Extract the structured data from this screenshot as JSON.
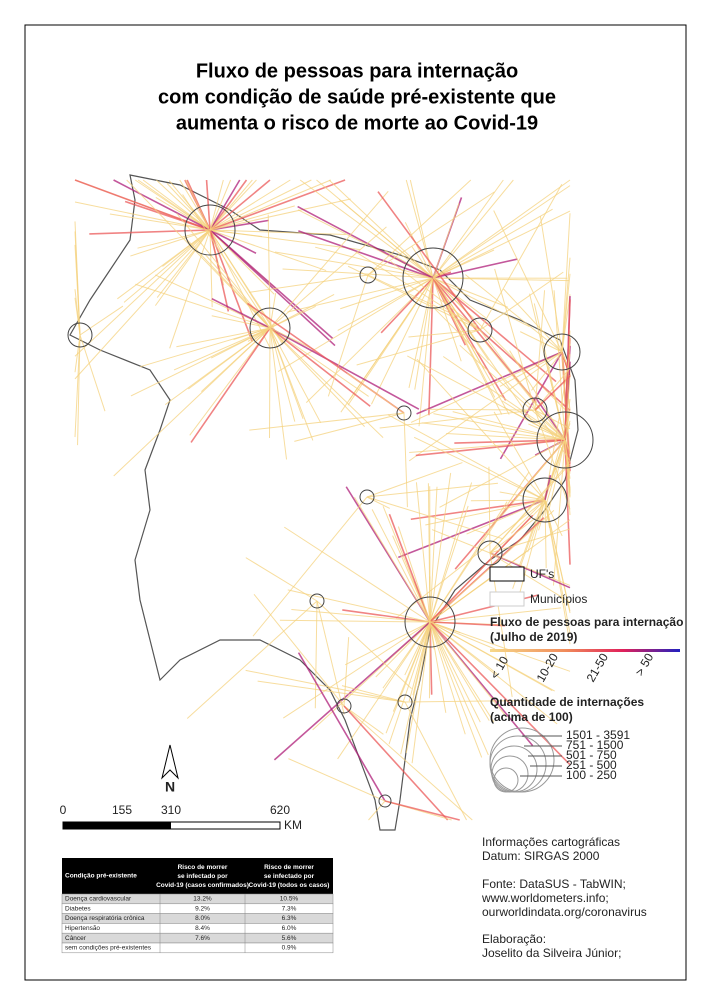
{
  "title": [
    "Fluxo de pessoas para internação",
    "com condição de saúde pré-existente que",
    "aumenta o risco de morte ao Covid-19"
  ],
  "legend": {
    "uf": "UF's",
    "municipios": "Municípios",
    "flow_title": "Fluxo de pessoas para internação",
    "flow_subtitle": "(Julho de 2019)",
    "flow_classes": [
      "< 10",
      "10-20",
      "21-50",
      "> 50"
    ],
    "qty_title": "Quantidade de internações",
    "qty_subtitle": "(acima de 100)",
    "qty_classes": [
      "1501 - 3591",
      "751 - 1500",
      "501 - 750",
      "251 - 500",
      "100 - 250"
    ]
  },
  "north": "N",
  "scale": {
    "labels": [
      "0",
      "155",
      "310",
      "620"
    ],
    "unit": "KM"
  },
  "info": [
    "Informações cartográficas",
    "Datum: SIRGAS 2000",
    "Fonte: DataSUS - TabWIN;",
    "www.worldometers.info;",
    "ourworldindata.org/coronavirus",
    "Elaboração:",
    "Joselito da Silveira Júnior;"
  ],
  "table": {
    "header": [
      "Condição pré-existente",
      "Risco de morrer se infectado por Covid-19 (casos confirmados)",
      "Risco de morrer se infectado por Covid-19 (todos os casos)"
    ],
    "rows": [
      [
        "Doença cardiovascular",
        "13.2%",
        "10.5%"
      ],
      [
        "Diabetes",
        "9.2%",
        "7.3%"
      ],
      [
        "Doença respiratória crônica",
        "8.0%",
        "6.3%"
      ],
      [
        "Hipertensão",
        "8.4%",
        "6.0%"
      ],
      [
        "Câncer",
        "7.6%",
        "5.6%"
      ],
      [
        "sem condições pré-existentes",
        null,
        "0.9%"
      ]
    ]
  }
}
